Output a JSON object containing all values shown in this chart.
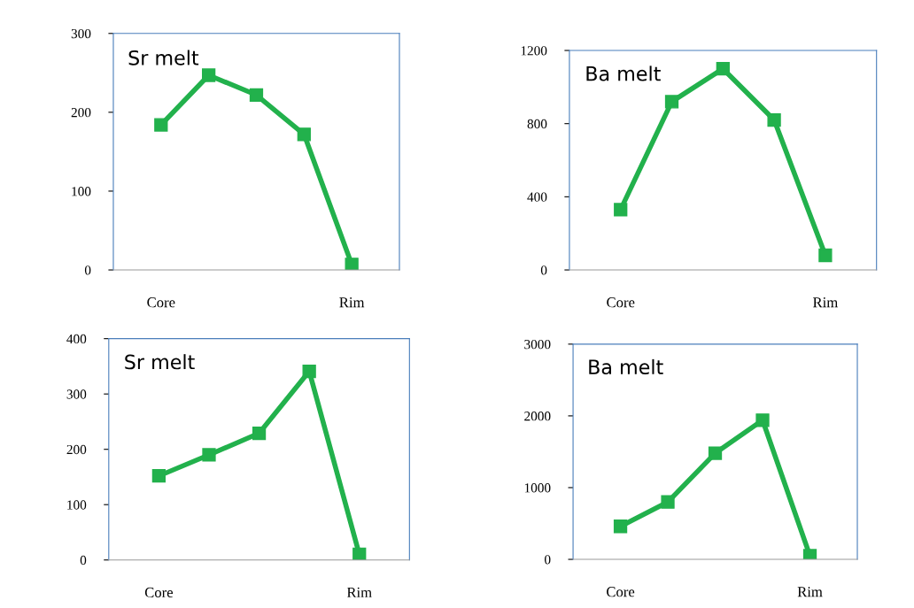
{
  "chart_data": [
    {
      "type": "line",
      "title": "Sr melt",
      "categories": [
        "Core",
        null,
        null,
        null,
        "Rim"
      ],
      "series": [
        {
          "color": "#22b14c",
          "values": [
            184,
            247,
            222,
            172,
            7
          ]
        }
      ],
      "ylim": [
        0,
        300
      ],
      "yticks": [
        0,
        100,
        200,
        300
      ],
      "marker": "square",
      "line_style": "solid",
      "grid": false
    },
    {
      "type": "line",
      "title": "Ba melt",
      "categories": [
        "Core",
        null,
        null,
        null,
        "Rim"
      ],
      "series": [
        {
          "color": "#22b14c",
          "values": [
            330,
            920,
            1100,
            820,
            80
          ]
        }
      ],
      "ylim": [
        0,
        1200
      ],
      "yticks": [
        0,
        400,
        800,
        1200
      ],
      "marker": "square",
      "line_style": "solid",
      "grid": false
    },
    {
      "type": "line",
      "title": "Sr melt",
      "categories": [
        "Core",
        null,
        null,
        null,
        "Rim"
      ],
      "series": [
        {
          "color": "#22b14c",
          "values": [
            152,
            190,
            229,
            341,
            10
          ]
        }
      ],
      "ylim": [
        0,
        400
      ],
      "yticks": [
        0,
        100,
        200,
        300,
        400
      ],
      "marker": "square",
      "line_style": "solid",
      "grid": false
    },
    {
      "type": "line",
      "title": "Ba melt",
      "categories": [
        "Core",
        null,
        null,
        null,
        "Rim"
      ],
      "series": [
        {
          "color": "#22b14c",
          "values": [
            460,
            800,
            1480,
            1940,
            50
          ]
        }
      ],
      "ylim": [
        0,
        3000
      ],
      "yticks": [
        0,
        1000,
        2000,
        3000
      ],
      "marker": "square",
      "line_style": "solid",
      "grid": false
    }
  ]
}
